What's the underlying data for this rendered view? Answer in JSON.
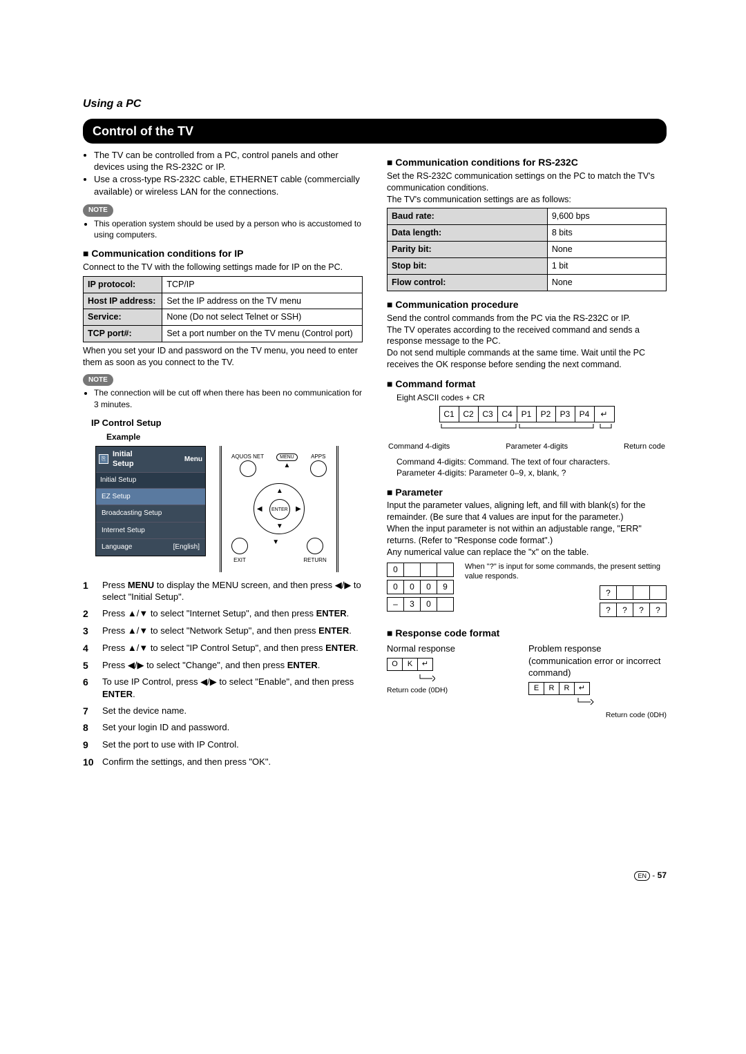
{
  "page_title": "Using a PC",
  "banner": "Control of the TV",
  "intro_bullets": [
    "The TV can be controlled from a PC, control panels and other devices using the RS-232C or IP.",
    "Use a cross-type RS-232C cable, ETHERNET cable (commercially available) or wireless LAN for the connections."
  ],
  "note_label": "NOTE",
  "note1": "This operation system should be used by a person who is accustomed to using computers.",
  "ip_heading": "Communication conditions for IP",
  "ip_desc": "Connect to the TV with the following settings made for IP on the PC.",
  "ip_table": [
    {
      "k": "IP protocol:",
      "v": "TCP/IP"
    },
    {
      "k": "Host IP address:",
      "v": "Set the IP address on the TV menu"
    },
    {
      "k": "Service:",
      "v": "None (Do not select Telnet or SSH)"
    },
    {
      "k": "TCP port#:",
      "v": "Set a port number on the TV menu (Control port)"
    }
  ],
  "ip_after": "When you set your ID and password on the TV menu, you need to enter them as soon as you connect to the TV.",
  "note2": "The connection will be cut off when there has been no communication for 3 minutes.",
  "setup_heading": "IP Control Setup",
  "example_label": "Example",
  "menu": {
    "icon_text": "⎘",
    "title1": "Initial",
    "title2": "Setup",
    "right": "Menu",
    "sub": "Initial Setup",
    "items": [
      {
        "label": "EZ Setup",
        "val": ""
      },
      {
        "label": "Broadcasting Setup",
        "val": ""
      },
      {
        "label": "Internet Setup",
        "val": ""
      },
      {
        "label": "Language",
        "val": "[English]"
      }
    ]
  },
  "remote": {
    "aquos": "AQUOS NET",
    "menu": "MENU",
    "apps": "APPS",
    "enter": "ENTER",
    "exit": "EXIT",
    "return": "RETURN"
  },
  "steps": [
    "Press <b>MENU</b> to display the MENU screen, and then press <span class='arrows'>◀/▶</span> to select \"Initial Setup\".",
    "Press <span class='arrows'>▲/▼</span> to select \"Internet Setup\", and then press <b>ENTER</b>.",
    "Press <span class='arrows'>▲/▼</span> to select \"Network Setup\", and then press <b>ENTER</b>.",
    "Press <span class='arrows'>▲/▼</span> to select \"IP Control Setup\", and then press <b>ENTER</b>.",
    "Press <span class='arrows'>◀/▶</span> to select \"Change\", and then press <b>ENTER</b>.",
    "To use IP Control, press <span class='arrows'>◀/▶</span> to select \"Enable\", and then press <b>ENTER</b>.",
    "Set the device name.",
    "Set your login ID and password.",
    "Set the port to use with IP Control.",
    "Confirm the settings, and then press \"OK\"."
  ],
  "rs232_heading": "Communication conditions for RS-232C",
  "rs232_desc": "Set the RS-232C communication settings on the PC to match the TV's communication conditions.\nThe TV's communication settings are as follows:",
  "rs232_table": [
    {
      "k": "Baud rate:",
      "v": "9,600 bps"
    },
    {
      "k": "Data length:",
      "v": "8 bits"
    },
    {
      "k": "Parity bit:",
      "v": "None"
    },
    {
      "k": "Stop bit:",
      "v": "1 bit"
    },
    {
      "k": "Flow control:",
      "v": "None"
    }
  ],
  "proc_heading": "Communication procedure",
  "proc_desc": "Send the control commands from the PC via the RS-232C or IP.\nThe TV operates according to the received command and sends a response message to the PC.\nDo not send multiple commands at the same time. Wait until the PC receives the OK response before sending the next command.",
  "cmd_heading": "Command format",
  "cmd_sub": "Eight ASCII codes + CR",
  "cmd_cells": [
    "C1",
    "C2",
    "C3",
    "C4",
    "P1",
    "P2",
    "P3",
    "P4",
    "↵"
  ],
  "cmd_label_left": "Command 4-digits",
  "cmd_label_mid": "Parameter 4-digits",
  "cmd_label_right": "Return code",
  "cmd_explain": "Command 4-digits: Command. The text of four characters.\nParameter 4-digits: Parameter 0–9, x, blank, ?",
  "param_heading": "Parameter",
  "param_desc": "Input the parameter values, aligning left, and fill with blank(s) for the remainder. (Be sure that 4 values are input for the parameter.)\nWhen the input parameter is not within an adjustable range, \"ERR\" returns. (Refer to \"Response code format\".)\nAny numerical value can replace the \"x\" on the table.",
  "param_tables_left": [
    [
      "0",
      "",
      "",
      ""
    ],
    [
      "0",
      "0",
      "0",
      "9"
    ],
    [
      "–",
      "3",
      "0",
      ""
    ]
  ],
  "param_note": "When \"?\" is input for some commands, the present setting value responds.",
  "param_tables_right": [
    [
      "?",
      "",
      "",
      ""
    ],
    [
      "?",
      "?",
      "?",
      "?"
    ]
  ],
  "resp_heading": "Response code format",
  "resp_normal": "Normal response",
  "resp_normal_cells": [
    "O",
    "K",
    "↵"
  ],
  "resp_normal_note": "Return code (0DH)",
  "resp_problem": "Problem response (communication error or incorrect command)",
  "resp_problem_cells": [
    "E",
    "R",
    "R",
    "↵"
  ],
  "resp_problem_note": "Return code (0DH)",
  "footer": {
    "en": "EN",
    "sep": "-",
    "page": "57"
  }
}
